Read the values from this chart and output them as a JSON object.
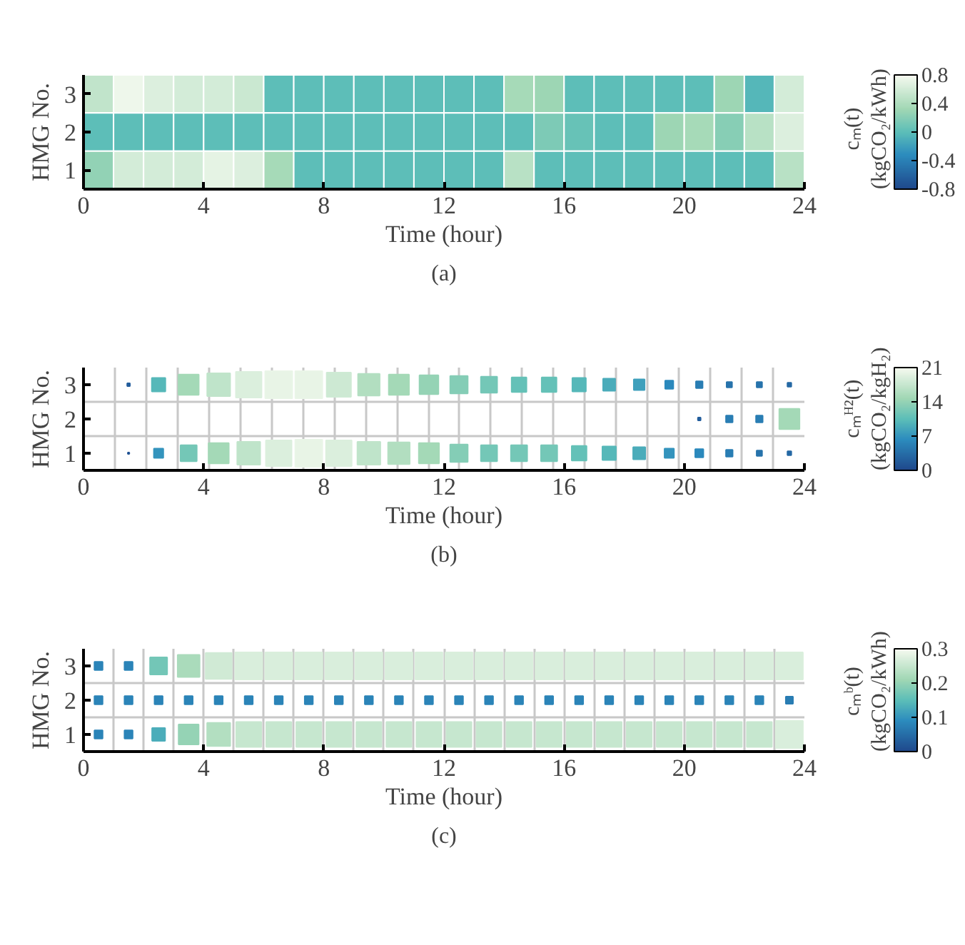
{
  "chart_data": [
    {
      "type": "heatmap",
      "xlabel": "Time (hour)",
      "ylabel": "HMG No.",
      "clabel": "cₘ(t)\n(kgCO₂/kWh)",
      "annotations": [
        "(a)"
      ],
      "x": [
        0.5,
        1.5,
        2.5,
        3.5,
        4.5,
        5.5,
        6.5,
        7.5,
        8.5,
        9.5,
        10.5,
        11.5,
        12.5,
        13.5,
        14.5,
        15.5,
        16.5,
        17.5,
        18.5,
        19.5,
        20.5,
        21.5,
        22.5,
        23.5
      ],
      "y_categories": [
        "3",
        "2",
        "1"
      ],
      "xlim": [
        0,
        24
      ],
      "xticks": [
        0,
        4,
        8,
        12,
        16,
        20,
        24
      ],
      "clim": [
        -0.8,
        0.8
      ],
      "cticks": [
        -0.8,
        -0.4,
        0,
        0.4,
        0.8
      ],
      "cells": [
        [
          0.5,
          0.75,
          0.65,
          0.6,
          0.6,
          0.55,
          0,
          0,
          0,
          0,
          0,
          0,
          0,
          0,
          0.35,
          0.3,
          0,
          0,
          0,
          0,
          0,
          0.3,
          -0.05,
          0.6
        ],
        [
          0,
          0,
          0,
          0,
          0,
          0,
          0,
          0,
          0,
          0,
          0,
          0,
          0,
          0,
          0,
          0.15,
          0.05,
          0,
          0,
          0.3,
          0.35,
          0.2,
          0.45,
          0.65
        ],
        [
          0.25,
          0.6,
          0.6,
          0.6,
          0.7,
          0.65,
          0.35,
          0,
          0,
          0,
          0,
          0,
          0,
          0,
          0.45,
          0,
          0,
          0,
          0,
          0,
          0,
          0,
          0,
          0.45
        ]
      ]
    },
    {
      "type": "bubble",
      "marker": "square",
      "grid": true,
      "xlabel": "Time (hour)",
      "ylabel": "HMG No.",
      "clabel": "cₘᴴ²(t)\n(kgCO₂/kgH₂)",
      "annotations": [
        "(b)"
      ],
      "xlim": [
        0,
        24
      ],
      "xticks": [
        0,
        4,
        8,
        12,
        16,
        20,
        24
      ],
      "ylim": [
        0.5,
        3.5
      ],
      "yticks": [
        1,
        2,
        3
      ],
      "clim": [
        0,
        21
      ],
      "cticks": [
        0,
        7,
        14,
        21
      ],
      "series": [
        {
          "x": [
            1.5,
            2.5,
            3.5,
            4.5,
            5.5,
            6.5,
            7.5,
            8.5,
            9.5,
            10.5,
            11.5,
            12.5,
            13.5,
            14.5,
            15.5,
            16.5,
            17.5,
            18.5,
            19.5,
            20.5,
            21.5,
            22.5,
            23.5
          ],
          "values": [
            3,
            3,
            3,
            3,
            3,
            3,
            3,
            3,
            3,
            3,
            3,
            3,
            3,
            3,
            3,
            3,
            3,
            3,
            3,
            3,
            3,
            3,
            3
          ],
          "cvalues": [
            2,
            10,
            15,
            17,
            19,
            20,
            20,
            18,
            16,
            15,
            14,
            13,
            12,
            11,
            11,
            10,
            9,
            8,
            6,
            5,
            4,
            4,
            3
          ],
          "sizes": [
            0.01,
            0.25,
            0.56,
            0.72,
            0.9,
            1,
            1,
            0.81,
            0.64,
            0.56,
            0.49,
            0.42,
            0.36,
            0.3,
            0.3,
            0.25,
            0.2,
            0.16,
            0.09,
            0.06,
            0.04,
            0.04,
            0.02
          ],
          "colors": [
            "#235e9c",
            "#56b8b9",
            "#a4d9b7",
            "#bfe4ca",
            "#dbefdd",
            "#e8f4e6",
            "#e8f4e6",
            "#cde9d3",
            "#b2dec0",
            "#a4d9b7",
            "#95d3b5",
            "#84cdb6",
            "#74c7b7",
            "#64c1b8",
            "#64c1b8",
            "#56b8b9",
            "#4bacba",
            "#3fa0bc",
            "#2b89bc",
            "#297eb4",
            "#2773ac",
            "#2773ac",
            "#2568a4"
          ]
        },
        {
          "x": [
            20.5,
            21.5,
            22.5,
            23.5
          ],
          "values": [
            2,
            2,
            2,
            2
          ],
          "cvalues": [
            2,
            5,
            5,
            15
          ],
          "sizes": [
            0.01,
            0.06,
            0.06,
            0.56
          ],
          "colors": [
            "#235e9c",
            "#297eb4",
            "#297eb4",
            "#a4d9b7"
          ]
        },
        {
          "x": [
            1.5,
            2.5,
            3.5,
            4.5,
            5.5,
            6.5,
            7.5,
            8.5,
            9.5,
            10.5,
            11.5,
            12.5,
            13.5,
            14.5,
            15.5,
            16.5,
            17.5,
            18.5,
            19.5,
            20.5,
            21.5,
            22.5,
            23.5
          ],
          "values": [
            1,
            1,
            1,
            1,
            1,
            1,
            1,
            1,
            1,
            1,
            1,
            1,
            1,
            1,
            1,
            1,
            1,
            1,
            1,
            1,
            1,
            1,
            1
          ],
          "cvalues": [
            1,
            7,
            12,
            15,
            17,
            19,
            20,
            19,
            17,
            16,
            15,
            13,
            12,
            12,
            12,
            11,
            10,
            9,
            7,
            6,
            5,
            4,
            3
          ],
          "sizes": [
            0.003,
            0.12,
            0.36,
            0.56,
            0.72,
            0.9,
            1,
            0.9,
            0.72,
            0.64,
            0.56,
            0.42,
            0.36,
            0.36,
            0.36,
            0.3,
            0.25,
            0.2,
            0.12,
            0.09,
            0.06,
            0.04,
            0.02
          ],
          "colors": [
            "#215394",
            "#3494bd",
            "#74c7b7",
            "#a4d9b7",
            "#bfe4ca",
            "#dbefdd",
            "#e8f4e6",
            "#dbefdd",
            "#bfe4ca",
            "#b2dec0",
            "#a4d9b7",
            "#84cdb6",
            "#74c7b7",
            "#74c7b7",
            "#74c7b7",
            "#64c1b8",
            "#56b8b9",
            "#4bacba",
            "#3494bd",
            "#2b89bc",
            "#297eb4",
            "#2773ac",
            "#2568a4"
          ]
        }
      ]
    },
    {
      "type": "bubble",
      "marker": "square",
      "grid": true,
      "xlabel": "Time (hour)",
      "ylabel": "HMG No.",
      "clabel": "cₘᵇ(t)\n(kgCO₂/kWh)",
      "annotations": [
        "(c)"
      ],
      "xlim": [
        0,
        24
      ],
      "xticks": [
        0,
        4,
        8,
        12,
        16,
        20,
        24
      ],
      "ylim": [
        0.5,
        3.5
      ],
      "yticks": [
        1,
        2,
        3
      ],
      "clim": [
        0,
        0.3
      ],
      "cticks": [
        0,
        0.1,
        0.2,
        0.3
      ],
      "series": [
        {
          "x": [
            0.5,
            1.5,
            2.5,
            3.5,
            4.5,
            5.5,
            6.5,
            7.5,
            8.5,
            9.5,
            10.5,
            11.5,
            12.5,
            13.5,
            14.5,
            15.5,
            16.5,
            17.5,
            18.5,
            19.5,
            20.5,
            21.5,
            22.5,
            23.5
          ],
          "values": [
            3,
            3,
            3,
            3,
            3,
            3,
            3,
            3,
            3,
            3,
            3,
            3,
            3,
            3,
            3,
            3,
            3,
            3,
            3,
            3,
            3,
            3,
            3,
            3
          ],
          "cvalues": [
            0.08,
            0.08,
            0.17,
            0.22,
            0.26,
            0.27,
            0.27,
            0.27,
            0.27,
            0.27,
            0.27,
            0.27,
            0.27,
            0.27,
            0.27,
            0.27,
            0.27,
            0.27,
            0.27,
            0.27,
            0.27,
            0.27,
            0.27,
            0.27
          ],
          "sizes": [
            0.09,
            0.09,
            0.4,
            0.66,
            0.93,
            1,
            1,
            1,
            1,
            1,
            1,
            1,
            1,
            1,
            1,
            1,
            1,
            1,
            1,
            1,
            1,
            1,
            1,
            1
          ],
          "colors": [
            "#2b84b8",
            "#2b84b8",
            "#73c6b7",
            "#aadbbb",
            "#d0ead5",
            "#d9eedc",
            "#d9eedc",
            "#d9eedc",
            "#d9eedc",
            "#d9eedc",
            "#d9eedc",
            "#d9eedc",
            "#d9eedc",
            "#d9eedc",
            "#d9eedc",
            "#d9eedc",
            "#d9eedc",
            "#d9eedc",
            "#d9eedc",
            "#d9eedc",
            "#d9eedc",
            "#d9eedc",
            "#d9eedc",
            "#d9eedc"
          ]
        },
        {
          "x": [
            0.5,
            1.5,
            2.5,
            3.5,
            4.5,
            5.5,
            6.5,
            7.5,
            8.5,
            9.5,
            10.5,
            11.5,
            12.5,
            13.5,
            14.5,
            15.5,
            16.5,
            17.5,
            18.5,
            19.5,
            20.5,
            21.5,
            22.5,
            23.5
          ],
          "values": [
            2,
            2,
            2,
            2,
            2,
            2,
            2,
            2,
            2,
            2,
            2,
            2,
            2,
            2,
            2,
            2,
            2,
            2,
            2,
            2,
            2,
            2,
            2,
            2
          ],
          "cvalues": [
            0.08,
            0.08,
            0.08,
            0.08,
            0.08,
            0.08,
            0.08,
            0.08,
            0.08,
            0.08,
            0.08,
            0.08,
            0.08,
            0.08,
            0.08,
            0.08,
            0.08,
            0.08,
            0.08,
            0.08,
            0.08,
            0.08,
            0.08,
            0.07
          ],
          "sizes": [
            0.09,
            0.09,
            0.09,
            0.09,
            0.09,
            0.09,
            0.09,
            0.09,
            0.09,
            0.09,
            0.09,
            0.09,
            0.09,
            0.09,
            0.09,
            0.09,
            0.09,
            0.09,
            0.09,
            0.09,
            0.09,
            0.09,
            0.09,
            0.07
          ],
          "colors": [
            "#2b84b8",
            "#2b84b8",
            "#2b84b8",
            "#2b84b8",
            "#2b84b8",
            "#2b84b8",
            "#2b84b8",
            "#2b84b8",
            "#2b84b8",
            "#2b84b8",
            "#2b84b8",
            "#2b84b8",
            "#2b84b8",
            "#2b84b8",
            "#2b84b8",
            "#2b84b8",
            "#2b84b8",
            "#2b84b8",
            "#2b84b8",
            "#2b84b8",
            "#2b84b8",
            "#2b84b8",
            "#2b84b8",
            "#297db3"
          ]
        },
        {
          "x": [
            0.5,
            1.5,
            2.5,
            3.5,
            4.5,
            5.5,
            6.5,
            7.5,
            8.5,
            9.5,
            10.5,
            11.5,
            12.5,
            13.5,
            14.5,
            15.5,
            16.5,
            17.5,
            18.5,
            19.5,
            20.5,
            21.5,
            22.5,
            23.5
          ],
          "values": [
            1,
            1,
            1,
            1,
            1,
            1,
            1,
            1,
            1,
            1,
            1,
            1,
            1,
            1,
            1,
            1,
            1,
            1,
            1,
            1,
            1,
            1,
            1,
            1
          ],
          "cvalues": [
            0.08,
            0.08,
            0.13,
            0.2,
            0.23,
            0.25,
            0.25,
            0.25,
            0.25,
            0.25,
            0.25,
            0.25,
            0.25,
            0.25,
            0.25,
            0.25,
            0.25,
            0.25,
            0.25,
            0.25,
            0.25,
            0.25,
            0.25,
            0.27
          ],
          "sizes": [
            0.09,
            0.09,
            0.23,
            0.55,
            0.73,
            0.86,
            0.86,
            0.86,
            0.86,
            0.86,
            0.86,
            0.86,
            0.86,
            0.86,
            0.86,
            0.86,
            0.86,
            0.86,
            0.86,
            0.86,
            0.86,
            0.86,
            0.86,
            1
          ],
          "colors": [
            "#2b84b8",
            "#2b84b8",
            "#4badba",
            "#95d3b5",
            "#b3dfc1",
            "#c6e7cf",
            "#c6e7cf",
            "#c6e7cf",
            "#c6e7cf",
            "#c6e7cf",
            "#c6e7cf",
            "#c6e7cf",
            "#c6e7cf",
            "#c6e7cf",
            "#c6e7cf",
            "#c6e7cf",
            "#c6e7cf",
            "#c6e7cf",
            "#c6e7cf",
            "#c6e7cf",
            "#c6e7cf",
            "#c6e7cf",
            "#c6e7cf",
            "#d9eedc"
          ]
        }
      ]
    }
  ]
}
